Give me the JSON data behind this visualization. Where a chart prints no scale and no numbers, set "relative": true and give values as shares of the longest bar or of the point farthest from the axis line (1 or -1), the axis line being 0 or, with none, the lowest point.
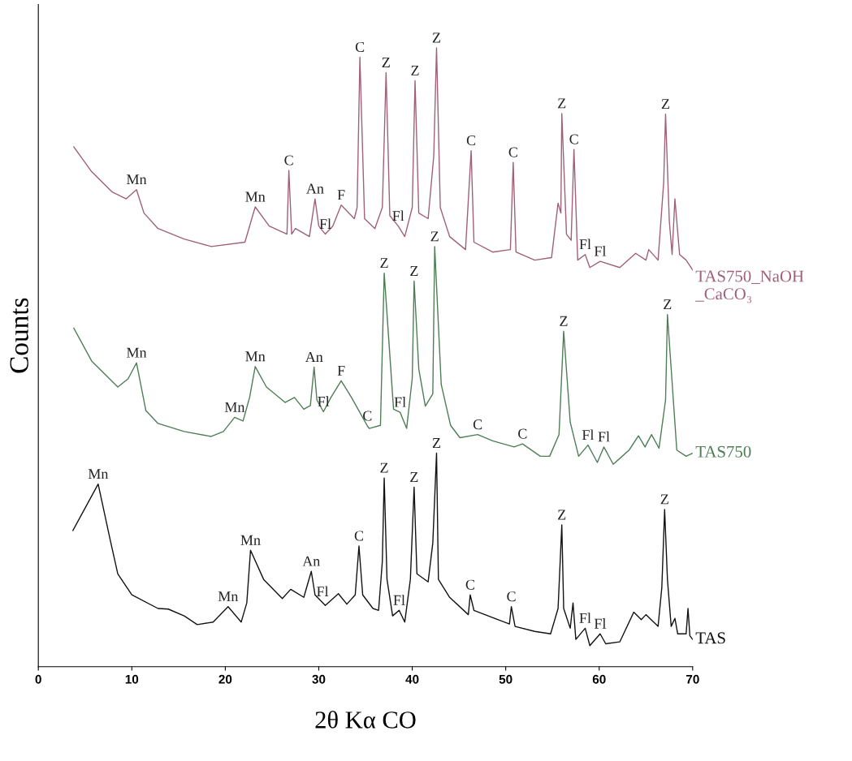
{
  "chart_data": {
    "type": "line",
    "relative": true,
    "xlabel": "2θ Kα CO",
    "ylabel": "Counts",
    "xlim": [
      0,
      70
    ],
    "xticks": [
      0,
      10,
      20,
      30,
      40,
      50,
      60,
      70
    ],
    "grid": false,
    "legend": false,
    "marker": "none",
    "line_style": "solid",
    "series": [
      {
        "name": "TAS750_NaOH\n_CaCO₃",
        "color": "#a0607a",
        "x": [
          3.8,
          5.7,
          7.9,
          9.4,
          10.5,
          11.3,
          12.8,
          15.6,
          18.5,
          22.1,
          23.2,
          24.7,
          26.6,
          26.8,
          27.1,
          27.5,
          29.0,
          29.6,
          30.0,
          30.7,
          31.5,
          32.4,
          33.8,
          34.1,
          34.4,
          34.9,
          36.0,
          36.8,
          37.2,
          37.6,
          38.5,
          39.2,
          40.0,
          40.3,
          40.7,
          41.7,
          42.3,
          42.6,
          43.0,
          44.0,
          45.7,
          46.3,
          46.6,
          48.6,
          50.5,
          50.8,
          51.1,
          53.1,
          54.9,
          55.6,
          55.9,
          56.0,
          56.5,
          57.0,
          57.3,
          57.7,
          58.5,
          59.0,
          60.1,
          62.2,
          63.9,
          65.0,
          65.3,
          66.3,
          66.9,
          67.1,
          67.5,
          67.8,
          68.1,
          68.6,
          69.3,
          70.0
        ],
        "values": [
          0.84,
          0.8,
          0.767,
          0.756,
          0.771,
          0.733,
          0.708,
          0.691,
          0.679,
          0.686,
          0.743,
          0.712,
          0.699,
          0.802,
          0.699,
          0.708,
          0.695,
          0.756,
          0.712,
          0.699,
          0.712,
          0.746,
          0.724,
          0.742,
          0.985,
          0.724,
          0.708,
          0.742,
          0.96,
          0.729,
          0.712,
          0.695,
          0.742,
          0.947,
          0.733,
          0.724,
          0.825,
          1.0,
          0.742,
          0.695,
          0.674,
          0.834,
          0.686,
          0.67,
          0.674,
          0.815,
          0.67,
          0.657,
          0.661,
          0.749,
          0.733,
          0.894,
          0.699,
          0.689,
          0.836,
          0.657,
          0.666,
          0.645,
          0.655,
          0.645,
          0.668,
          0.657,
          0.674,
          0.657,
          0.783,
          0.893,
          0.72,
          0.666,
          0.756,
          0.666,
          0.657,
          0.641
        ]
      },
      {
        "name": "TAS750",
        "color": "#4e7d56",
        "x": [
          3.8,
          5.7,
          8.5,
          9.6,
          10.5,
          11.5,
          12.8,
          15.6,
          18.5,
          19.8,
          21.0,
          21.9,
          22.6,
          23.2,
          24.4,
          26.4,
          27.4,
          28.4,
          29.1,
          29.5,
          29.8,
          30.5,
          31.3,
          32.4,
          33.5,
          35.2,
          35.4,
          36.6,
          37.0,
          38.0,
          38.7,
          39.4,
          40.0,
          40.2,
          40.7,
          41.4,
          42.2,
          42.4,
          43.1,
          44.1,
          45.1,
          47.0,
          48.6,
          50.9,
          51.8,
          53.7,
          54.7,
          55.7,
          56.2,
          56.9,
          57.8,
          58.8,
          59.8,
          60.5,
          61.5,
          63.2,
          64.2,
          64.9,
          65.6,
          66.4,
          67.1,
          67.3,
          68.3,
          69.3,
          70.0
        ],
        "values": [
          0.547,
          0.494,
          0.452,
          0.465,
          0.491,
          0.414,
          0.393,
          0.38,
          0.372,
          0.38,
          0.403,
          0.397,
          0.435,
          0.485,
          0.452,
          0.427,
          0.435,
          0.416,
          0.422,
          0.484,
          0.431,
          0.412,
          0.435,
          0.462,
          0.435,
          0.389,
          0.385,
          0.39,
          0.636,
          0.416,
          0.411,
          0.385,
          0.466,
          0.623,
          0.481,
          0.421,
          0.441,
          0.679,
          0.456,
          0.39,
          0.37,
          0.375,
          0.365,
          0.355,
          0.36,
          0.34,
          0.34,
          0.375,
          0.542,
          0.395,
          0.34,
          0.358,
          0.33,
          0.355,
          0.327,
          0.35,
          0.373,
          0.355,
          0.375,
          0.353,
          0.431,
          0.569,
          0.35,
          0.34,
          0.345
        ]
      },
      {
        "name": "TAS",
        "color": "#111111",
        "x": [
          3.7,
          6.4,
          7.7,
          8.5,
          10,
          12.8,
          13.9,
          15.6,
          17,
          18.7,
          20.3,
          21.7,
          22.3,
          22.7,
          24.1,
          26.1,
          27,
          28.4,
          29.2,
          29.6,
          30.7,
          32.1,
          33,
          33.9,
          34.3,
          34.7,
          35.8,
          36.4,
          36.8,
          37.0,
          37.3,
          37.9,
          38.6,
          39.2,
          39.8,
          40.2,
          40.5,
          41.7,
          42.2,
          42.6,
          42.8,
          44,
          46,
          46.2,
          46.6,
          48.8,
          50.4,
          50.6,
          51,
          53.1,
          54.8,
          55.6,
          56,
          56.2,
          56.9,
          57.2,
          57.5,
          58.5,
          59.0,
          60.1,
          60.7,
          62.2,
          63.7,
          64.5,
          65,
          66.3,
          66.7,
          67.0,
          67.3,
          67.7,
          68.1,
          68.4,
          69.3,
          69.5,
          69.7,
          70
        ],
        "values": [
          0.22,
          0.295,
          0.204,
          0.15,
          0.116,
          0.094,
          0.093,
          0.082,
          0.068,
          0.072,
          0.097,
          0.072,
          0.103,
          0.188,
          0.141,
          0.11,
          0.125,
          0.112,
          0.154,
          0.116,
          0.099,
          0.118,
          0.101,
          0.116,
          0.195,
          0.116,
          0.094,
          0.091,
          0.17,
          0.305,
          0.141,
          0.082,
          0.091,
          0.072,
          0.141,
          0.29,
          0.15,
          0.137,
          0.2,
          0.345,
          0.141,
          0.112,
          0.084,
          0.116,
          0.091,
          0.078,
          0.069,
          0.097,
          0.065,
          0.057,
          0.053,
          0.094,
          0.229,
          0.094,
          0.062,
          0.103,
          0.044,
          0.062,
          0.034,
          0.053,
          0.037,
          0.04,
          0.088,
          0.076,
          0.084,
          0.065,
          0.128,
          0.254,
          0.141,
          0.065,
          0.078,
          0.053,
          0.053,
          0.094,
          0.05,
          0.044
        ]
      }
    ],
    "annotations": [
      {
        "text": "Mn",
        "x": 10.5,
        "y": 0.771
      },
      {
        "text": "Mn",
        "x": 23.2,
        "y": 0.743
      },
      {
        "text": "C",
        "x": 26.8,
        "y": 0.802
      },
      {
        "text": "An",
        "x": 29.6,
        "y": 0.756
      },
      {
        "text": "Fl",
        "x": 30.7,
        "y": 0.699
      },
      {
        "text": "F",
        "x": 32.4,
        "y": 0.746
      },
      {
        "text": "C",
        "x": 34.4,
        "y": 0.985
      },
      {
        "text": "Z",
        "x": 37.2,
        "y": 0.96
      },
      {
        "text": "Fl",
        "x": 38.5,
        "y": 0.712
      },
      {
        "text": "Z",
        "x": 40.3,
        "y": 0.947
      },
      {
        "text": "Z",
        "x": 42.6,
        "y": 1.0
      },
      {
        "text": "C",
        "x": 46.3,
        "y": 0.834
      },
      {
        "text": "C",
        "x": 50.8,
        "y": 0.815
      },
      {
        "text": "Z",
        "x": 56.0,
        "y": 0.894
      },
      {
        "text": "C",
        "x": 57.3,
        "y": 0.836
      },
      {
        "text": "Fl",
        "x": 58.5,
        "y": 0.666
      },
      {
        "text": "Fl",
        "x": 60.1,
        "y": 0.655
      },
      {
        "text": "Z",
        "x": 67.1,
        "y": 0.893
      },
      {
        "text": "Mn",
        "x": 10.5,
        "y": 0.491
      },
      {
        "text": "Mn",
        "x": 21.0,
        "y": 0.403
      },
      {
        "text": "Mn",
        "x": 23.2,
        "y": 0.485
      },
      {
        "text": "An",
        "x": 29.5,
        "y": 0.484
      },
      {
        "text": "Fl",
        "x": 30.5,
        "y": 0.412
      },
      {
        "text": "F",
        "x": 32.4,
        "y": 0.462
      },
      {
        "text": "C",
        "x": 35.2,
        "y": 0.389
      },
      {
        "text": "Z",
        "x": 37.0,
        "y": 0.636
      },
      {
        "text": "Fl",
        "x": 38.7,
        "y": 0.411
      },
      {
        "text": "Z",
        "x": 40.2,
        "y": 0.623
      },
      {
        "text": "Z",
        "x": 42.4,
        "y": 0.679
      },
      {
        "text": "C",
        "x": 47.0,
        "y": 0.375
      },
      {
        "text": "C",
        "x": 51.8,
        "y": 0.36
      },
      {
        "text": "Z",
        "x": 56.2,
        "y": 0.542
      },
      {
        "text": "Fl",
        "x": 58.8,
        "y": 0.358
      },
      {
        "text": "Fl",
        "x": 60.5,
        "y": 0.355
      },
      {
        "text": "Z",
        "x": 67.3,
        "y": 0.569
      },
      {
        "text": "Mn",
        "x": 6.4,
        "y": 0.295
      },
      {
        "text": "Mn",
        "x": 20.3,
        "y": 0.097
      },
      {
        "text": "Mn",
        "x": 22.7,
        "y": 0.188
      },
      {
        "text": "An",
        "x": 29.2,
        "y": 0.154
      },
      {
        "text": "Fl",
        "x": 30.4,
        "y": 0.105
      },
      {
        "text": "C",
        "x": 34.3,
        "y": 0.195
      },
      {
        "text": "Z",
        "x": 37.0,
        "y": 0.305
      },
      {
        "text": "Fl",
        "x": 38.6,
        "y": 0.091
      },
      {
        "text": "Z",
        "x": 40.2,
        "y": 0.29
      },
      {
        "text": "Z",
        "x": 42.6,
        "y": 0.345
      },
      {
        "text": "C",
        "x": 46.2,
        "y": 0.116
      },
      {
        "text": "C",
        "x": 50.6,
        "y": 0.097
      },
      {
        "text": "Z",
        "x": 56.0,
        "y": 0.229
      },
      {
        "text": "Fl",
        "x": 58.5,
        "y": 0.062
      },
      {
        "text": "Fl",
        "x": 60.1,
        "y": 0.053
      },
      {
        "text": "Z",
        "x": 67.0,
        "y": 0.254
      }
    ]
  }
}
